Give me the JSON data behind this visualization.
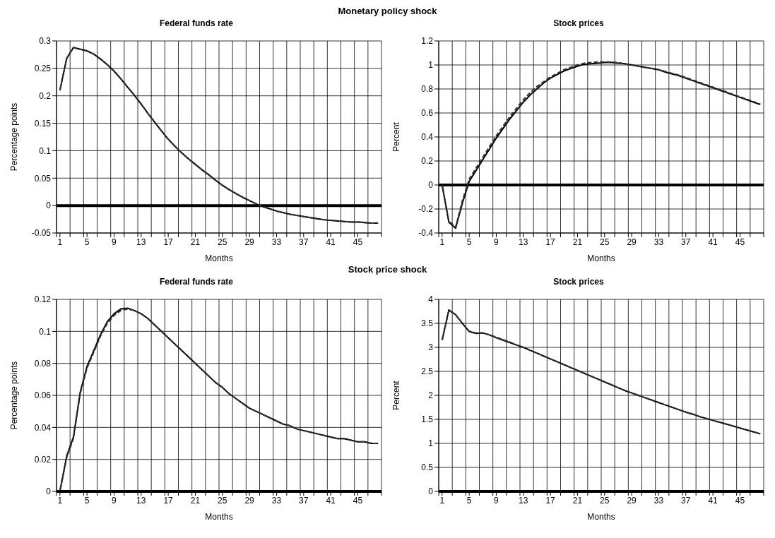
{
  "chart_data": [
    {
      "type": "line",
      "annotations": [
        "Monetary policy shock"
      ],
      "title": "Federal funds rate",
      "xlabel": "Months",
      "ylabel": "Percentage points",
      "x": [
        1,
        2,
        3,
        4,
        5,
        6,
        7,
        8,
        9,
        10,
        11,
        12,
        13,
        14,
        15,
        16,
        17,
        18,
        19,
        20,
        21,
        22,
        23,
        24,
        25,
        26,
        27,
        28,
        29,
        30,
        31,
        32,
        33,
        34,
        35,
        36,
        37,
        38,
        39,
        40,
        41,
        42,
        43,
        44,
        45,
        46,
        47,
        48
      ],
      "series": [
        {
          "color": "#000000",
          "line_style": "solid",
          "values": [
            0.21,
            0.268,
            0.288,
            0.285,
            0.282,
            0.276,
            0.267,
            0.257,
            0.245,
            0.231,
            0.216,
            0.201,
            0.185,
            0.168,
            0.152,
            0.136,
            0.121,
            0.108,
            0.096,
            0.085,
            0.075,
            0.065,
            0.056,
            0.046,
            0.037,
            0.029,
            0.022,
            0.015,
            0.009,
            0.003,
            -0.002,
            -0.006,
            -0.01,
            -0.013,
            -0.016,
            -0.018,
            -0.02,
            -0.022,
            -0.024,
            -0.026,
            -0.027,
            -0.028,
            -0.029,
            -0.03,
            -0.03,
            -0.031,
            -0.032,
            -0.032
          ]
        },
        {
          "color": "#333333",
          "line_style": "dashed",
          "values": [
            0.21,
            0.268,
            0.288,
            0.285,
            0.282,
            0.276,
            0.267,
            0.257,
            0.245,
            0.231,
            0.216,
            0.201,
            0.185,
            0.168,
            0.152,
            0.136,
            0.121,
            0.108,
            0.096,
            0.085,
            0.075,
            0.065,
            0.056,
            0.046,
            0.037,
            0.029,
            0.022,
            0.015,
            0.009,
            0.003,
            -0.002,
            -0.006,
            -0.01,
            -0.013,
            -0.016,
            -0.018,
            -0.02,
            -0.022,
            -0.024,
            -0.026,
            -0.027,
            -0.028,
            -0.029,
            -0.03,
            -0.03,
            -0.031,
            -0.032,
            -0.032
          ]
        }
      ],
      "xlim": [
        0.5,
        48.5
      ],
      "xticks": [
        {
          "value": 0.5,
          "label": null
        },
        1,
        {
          "value": 2.5,
          "label": null
        },
        {
          "value": 4.5,
          "label": null
        },
        5,
        {
          "value": 6.5,
          "label": null
        },
        {
          "value": 8.5,
          "label": null
        },
        9,
        {
          "value": 10.5,
          "label": null
        },
        {
          "value": 12.5,
          "label": null
        },
        13,
        {
          "value": 14.5,
          "label": null
        },
        {
          "value": 16.5,
          "label": null
        },
        17,
        {
          "value": 18.5,
          "label": null
        },
        {
          "value": 20.5,
          "label": null
        },
        21,
        {
          "value": 22.5,
          "label": null
        },
        {
          "value": 24.5,
          "label": null
        },
        25,
        {
          "value": 26.5,
          "label": null
        },
        {
          "value": 28.5,
          "label": null
        },
        29,
        {
          "value": 30.5,
          "label": null
        },
        {
          "value": 32.5,
          "label": null
        },
        33,
        {
          "value": 34.5,
          "label": null
        },
        {
          "value": 36.5,
          "label": null
        },
        37,
        {
          "value": 38.5,
          "label": null
        },
        {
          "value": 40.5,
          "label": null
        },
        41,
        {
          "value": 42.5,
          "label": null
        },
        {
          "value": 44.5,
          "label": null
        },
        45,
        {
          "value": 46.5,
          "label": null
        },
        {
          "value": 48.5,
          "label": null
        }
      ],
      "ylim": [
        -0.05,
        0.3
      ],
      "yticks": [
        -0.05,
        0,
        0.05,
        0.1,
        0.15,
        0.2,
        0.25,
        0.3
      ],
      "grid": true,
      "ref_lines": [
        {
          "axis": "y",
          "value": 0,
          "color": "#000000"
        }
      ]
    },
    {
      "type": "line",
      "title": "Stock prices",
      "xlabel": "Months",
      "ylabel": "Percent",
      "x": [
        1,
        2,
        3,
        4,
        5,
        6,
        7,
        8,
        9,
        10,
        11,
        12,
        13,
        14,
        15,
        16,
        17,
        18,
        19,
        20,
        21,
        22,
        23,
        24,
        25,
        26,
        27,
        28,
        29,
        30,
        31,
        32,
        33,
        34,
        35,
        36,
        37,
        38,
        39,
        40,
        41,
        42,
        43,
        44,
        45,
        46,
        47,
        48
      ],
      "series": [
        {
          "color": "#000000",
          "line_style": "solid",
          "values": [
            0,
            -0.31,
            -0.36,
            -0.15,
            0.03,
            0.12,
            0.21,
            0.3,
            0.39,
            0.47,
            0.55,
            0.62,
            0.69,
            0.75,
            0.8,
            0.85,
            0.89,
            0.92,
            0.95,
            0.97,
            0.99,
            1.005,
            1.01,
            1.015,
            1.02,
            1.02,
            1.015,
            1.01,
            1.0,
            0.99,
            0.98,
            0.97,
            0.96,
            0.94,
            0.925,
            0.91,
            0.89,
            0.87,
            0.85,
            0.83,
            0.81,
            0.79,
            0.77,
            0.75,
            0.73,
            0.71,
            0.69,
            0.67
          ]
        },
        {
          "color": "#333333",
          "line_style": "dashed",
          "values": [
            0,
            -0.3,
            -0.35,
            -0.13,
            0.05,
            0.14,
            0.23,
            0.32,
            0.41,
            0.49,
            0.57,
            0.64,
            0.71,
            0.77,
            0.82,
            0.86,
            0.9,
            0.93,
            0.96,
            0.98,
            1.0,
            1.015,
            1.02,
            1.025,
            1.025,
            1.025,
            1.02,
            1.01,
            1.0,
            0.99,
            0.98,
            0.97,
            0.96,
            0.945,
            0.93,
            0.915,
            0.895,
            0.875,
            0.855,
            0.835,
            0.815,
            0.795,
            0.775,
            0.755,
            0.735,
            0.715,
            0.695,
            0.675
          ]
        }
      ],
      "xlim": [
        0.5,
        48.5
      ],
      "xticks": [
        {
          "value": 0.5,
          "label": null
        },
        1,
        {
          "value": 2.5,
          "label": null
        },
        {
          "value": 4.5,
          "label": null
        },
        5,
        {
          "value": 6.5,
          "label": null
        },
        {
          "value": 8.5,
          "label": null
        },
        9,
        {
          "value": 10.5,
          "label": null
        },
        {
          "value": 12.5,
          "label": null
        },
        13,
        {
          "value": 14.5,
          "label": null
        },
        {
          "value": 16.5,
          "label": null
        },
        17,
        {
          "value": 18.5,
          "label": null
        },
        {
          "value": 20.5,
          "label": null
        },
        21,
        {
          "value": 22.5,
          "label": null
        },
        {
          "value": 24.5,
          "label": null
        },
        25,
        {
          "value": 26.5,
          "label": null
        },
        {
          "value": 28.5,
          "label": null
        },
        29,
        {
          "value": 30.5,
          "label": null
        },
        {
          "value": 32.5,
          "label": null
        },
        33,
        {
          "value": 34.5,
          "label": null
        },
        {
          "value": 36.5,
          "label": null
        },
        37,
        {
          "value": 38.5,
          "label": null
        },
        {
          "value": 40.5,
          "label": null
        },
        41,
        {
          "value": 42.5,
          "label": null
        },
        {
          "value": 44.5,
          "label": null
        },
        45,
        {
          "value": 46.5,
          "label": null
        },
        {
          "value": 48.5,
          "label": null
        }
      ],
      "ylim": [
        -0.4,
        1.2
      ],
      "yticks": [
        -0.4,
        -0.2,
        0,
        0.2,
        0.4,
        0.6,
        0.8,
        1,
        1.2
      ],
      "grid": true,
      "ref_lines": [
        {
          "axis": "y",
          "value": 0,
          "color": "#000000"
        }
      ]
    },
    {
      "type": "line",
      "annotations": [
        "Stock price shock"
      ],
      "title": "Federal funds rate",
      "xlabel": "Months",
      "ylabel": "Percentage points",
      "x": [
        1,
        2,
        3,
        4,
        5,
        6,
        7,
        8,
        9,
        10,
        11,
        12,
        13,
        14,
        15,
        16,
        17,
        18,
        19,
        20,
        21,
        22,
        23,
        24,
        25,
        26,
        27,
        28,
        29,
        30,
        31,
        32,
        33,
        34,
        35,
        36,
        37,
        38,
        39,
        40,
        41,
        42,
        43,
        44,
        45,
        46,
        47,
        48
      ],
      "series": [
        {
          "color": "#000000",
          "line_style": "solid",
          "values": [
            0,
            0.022,
            0.034,
            0.062,
            0.078,
            0.088,
            0.098,
            0.106,
            0.111,
            0.114,
            0.1145,
            0.113,
            0.111,
            0.108,
            0.104,
            0.1,
            0.096,
            0.092,
            0.088,
            0.084,
            0.08,
            0.076,
            0.072,
            0.068,
            0.065,
            0.061,
            0.058,
            0.055,
            0.052,
            0.05,
            0.048,
            0.046,
            0.044,
            0.042,
            0.041,
            0.039,
            0.038,
            0.037,
            0.036,
            0.035,
            0.034,
            0.033,
            0.033,
            0.032,
            0.031,
            0.031,
            0.03,
            0.03
          ]
        },
        {
          "color": "#333333",
          "line_style": "dashed",
          "values": [
            0,
            0.021,
            0.033,
            0.061,
            0.077,
            0.087,
            0.097,
            0.105,
            0.11,
            0.113,
            0.114,
            0.113,
            0.111,
            0.108,
            0.104,
            0.1,
            0.096,
            0.092,
            0.088,
            0.084,
            0.08,
            0.076,
            0.072,
            0.068,
            0.065,
            0.061,
            0.058,
            0.055,
            0.052,
            0.05,
            0.048,
            0.046,
            0.044,
            0.042,
            0.041,
            0.039,
            0.038,
            0.037,
            0.036,
            0.035,
            0.034,
            0.033,
            0.033,
            0.032,
            0.031,
            0.031,
            0.03,
            0.03
          ]
        }
      ],
      "xlim": [
        0.5,
        48.5
      ],
      "xticks": [
        {
          "value": 0.5,
          "label": null
        },
        1,
        {
          "value": 2.5,
          "label": null
        },
        {
          "value": 4.5,
          "label": null
        },
        5,
        {
          "value": 6.5,
          "label": null
        },
        {
          "value": 8.5,
          "label": null
        },
        9,
        {
          "value": 10.5,
          "label": null
        },
        {
          "value": 12.5,
          "label": null
        },
        13,
        {
          "value": 14.5,
          "label": null
        },
        {
          "value": 16.5,
          "label": null
        },
        17,
        {
          "value": 18.5,
          "label": null
        },
        {
          "value": 20.5,
          "label": null
        },
        21,
        {
          "value": 22.5,
          "label": null
        },
        {
          "value": 24.5,
          "label": null
        },
        25,
        {
          "value": 26.5,
          "label": null
        },
        {
          "value": 28.5,
          "label": null
        },
        29,
        {
          "value": 30.5,
          "label": null
        },
        {
          "value": 32.5,
          "label": null
        },
        33,
        {
          "value": 34.5,
          "label": null
        },
        {
          "value": 36.5,
          "label": null
        },
        37,
        {
          "value": 38.5,
          "label": null
        },
        {
          "value": 40.5,
          "label": null
        },
        41,
        {
          "value": 42.5,
          "label": null
        },
        {
          "value": 44.5,
          "label": null
        },
        45,
        {
          "value": 46.5,
          "label": null
        },
        {
          "value": 48.5,
          "label": null
        }
      ],
      "ylim": [
        0,
        0.12
      ],
      "yticks": [
        0,
        0.02,
        0.04,
        0.06,
        0.08,
        0.1,
        0.12
      ],
      "grid": true
    },
    {
      "type": "line",
      "title": "Stock prices",
      "xlabel": "Months",
      "ylabel": "Percent",
      "x": [
        1,
        2,
        3,
        4,
        5,
        6,
        7,
        8,
        9,
        10,
        11,
        12,
        13,
        14,
        15,
        16,
        17,
        18,
        19,
        20,
        21,
        22,
        23,
        24,
        25,
        26,
        27,
        28,
        29,
        30,
        31,
        32,
        33,
        34,
        35,
        36,
        37,
        38,
        39,
        40,
        41,
        42,
        43,
        44,
        45,
        46,
        47,
        48
      ],
      "series": [
        {
          "color": "#000000",
          "line_style": "solid",
          "values": [
            3.15,
            3.78,
            3.68,
            3.5,
            3.33,
            3.29,
            3.3,
            3.26,
            3.2,
            3.15,
            3.1,
            3.05,
            3.0,
            2.94,
            2.88,
            2.82,
            2.76,
            2.7,
            2.64,
            2.58,
            2.52,
            2.46,
            2.4,
            2.34,
            2.28,
            2.22,
            2.16,
            2.1,
            2.05,
            2.0,
            1.95,
            1.9,
            1.85,
            1.8,
            1.75,
            1.7,
            1.65,
            1.61,
            1.56,
            1.52,
            1.48,
            1.44,
            1.4,
            1.36,
            1.32,
            1.28,
            1.24,
            1.2
          ]
        },
        {
          "color": "#333333",
          "line_style": "dashed",
          "values": [
            3.15,
            3.77,
            3.68,
            3.5,
            3.34,
            3.3,
            3.3,
            3.26,
            3.21,
            3.16,
            3.11,
            3.05,
            3.0,
            2.94,
            2.88,
            2.82,
            2.76,
            2.7,
            2.64,
            2.58,
            2.52,
            2.46,
            2.4,
            2.34,
            2.28,
            2.22,
            2.16,
            2.1,
            2.05,
            2.0,
            1.95,
            1.9,
            1.85,
            1.8,
            1.75,
            1.7,
            1.65,
            1.61,
            1.56,
            1.52,
            1.48,
            1.44,
            1.4,
            1.36,
            1.32,
            1.28,
            1.24,
            1.2
          ]
        }
      ],
      "xlim": [
        0.5,
        48.5
      ],
      "xticks": [
        {
          "value": 0.5,
          "label": null
        },
        1,
        {
          "value": 2.5,
          "label": null
        },
        {
          "value": 4.5,
          "label": null
        },
        5,
        {
          "value": 6.5,
          "label": null
        },
        {
          "value": 8.5,
          "label": null
        },
        9,
        {
          "value": 10.5,
          "label": null
        },
        {
          "value": 12.5,
          "label": null
        },
        13,
        {
          "value": 14.5,
          "label": null
        },
        {
          "value": 16.5,
          "label": null
        },
        17,
        {
          "value": 18.5,
          "label": null
        },
        {
          "value": 20.5,
          "label": null
        },
        21,
        {
          "value": 22.5,
          "label": null
        },
        {
          "value": 24.5,
          "label": null
        },
        25,
        {
          "value": 26.5,
          "label": null
        },
        {
          "value": 28.5,
          "label": null
        },
        29,
        {
          "value": 30.5,
          "label": null
        },
        {
          "value": 32.5,
          "label": null
        },
        33,
        {
          "value": 34.5,
          "label": null
        },
        {
          "value": 36.5,
          "label": null
        },
        37,
        {
          "value": 38.5,
          "label": null
        },
        {
          "value": 40.5,
          "label": null
        },
        41,
        {
          "value": 42.5,
          "label": null
        },
        {
          "value": 44.5,
          "label": null
        },
        45,
        {
          "value": 46.5,
          "label": null
        },
        {
          "value": 48.5,
          "label": null
        }
      ],
      "ylim": [
        0,
        4
      ],
      "yticks": [
        0,
        0.5,
        1,
        1.5,
        2,
        2.5,
        3,
        3.5,
        4
      ],
      "grid": true
    }
  ]
}
